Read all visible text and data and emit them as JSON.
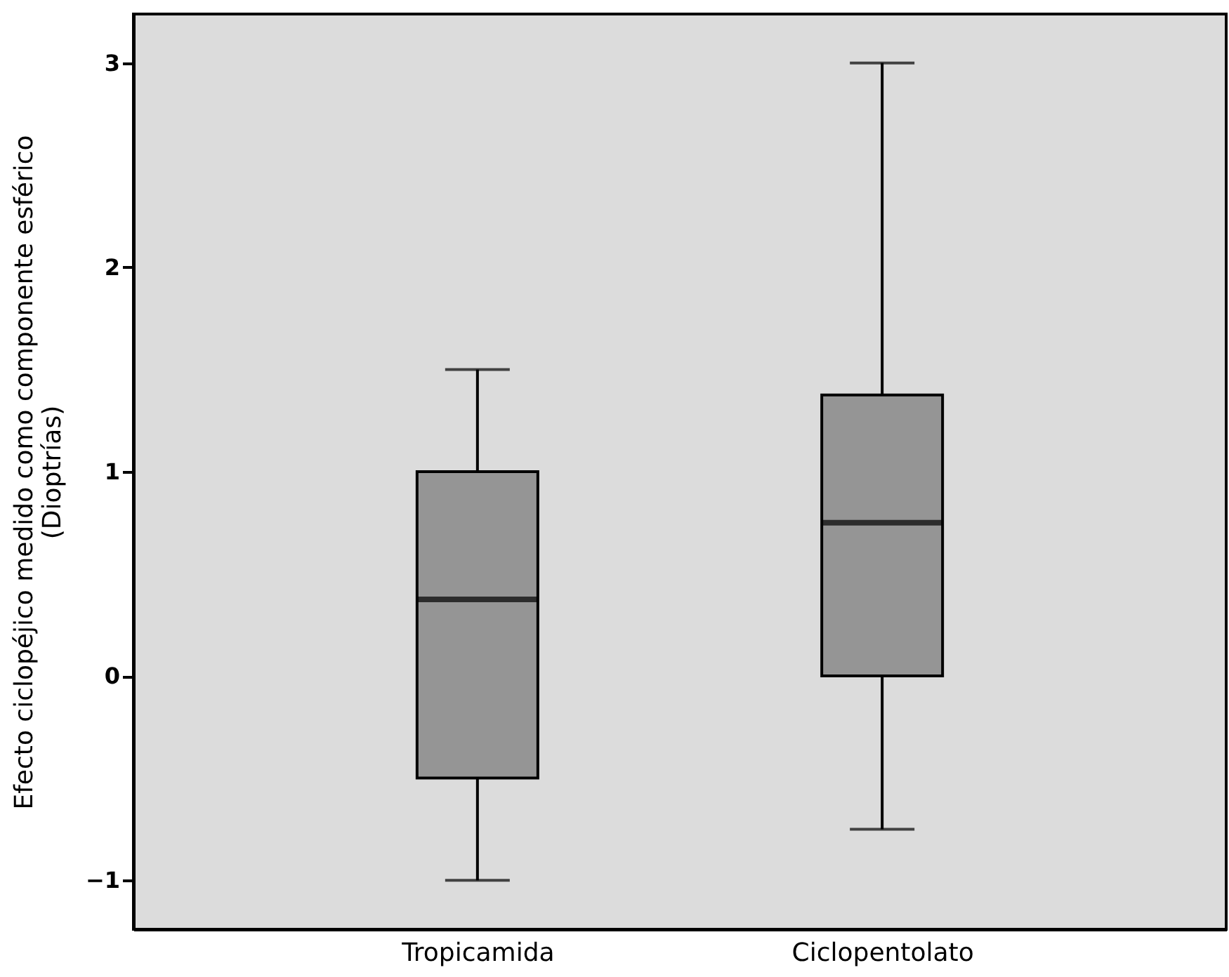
{
  "chart_data": {
    "type": "box",
    "ylabel": "Efecto ciclopéjico medido como componente esférico (Dioptrías)",
    "categories": [
      "Tropicamida",
      "Ciclopentolato"
    ],
    "boxes": [
      {
        "low": -1.0,
        "q1": -0.5,
        "median": 0.375,
        "q3": 1.0,
        "high": 1.5
      },
      {
        "low": -0.75,
        "q1": 0.0,
        "median": 0.75,
        "q3": 1.375,
        "high": 3.0
      }
    ],
    "color": "#959595",
    "ylim": [
      -1.24,
      3.24
    ],
    "yticks": [
      -1,
      0,
      1,
      2,
      3
    ],
    "grid": false
  }
}
